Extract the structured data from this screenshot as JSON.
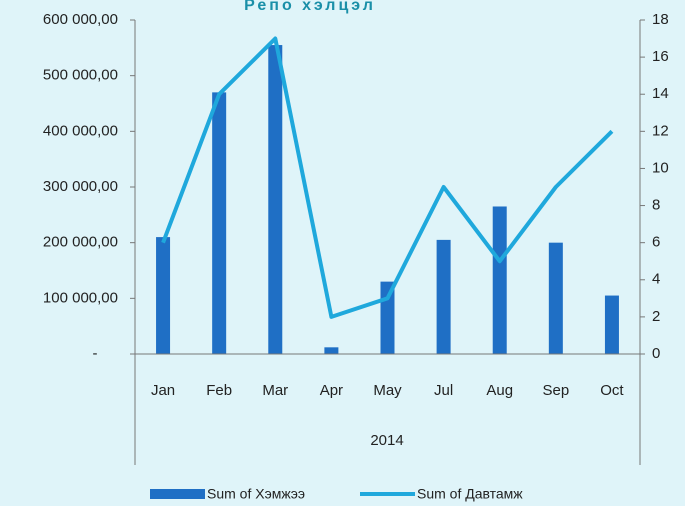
{
  "chart_data": {
    "type": "bar_line",
    "title": "Репо хэлцэл",
    "categories": [
      "Jan",
      "Feb",
      "Mar",
      "Apr",
      "May",
      "Jul",
      "Aug",
      "Sep",
      "Oct"
    ],
    "group_label": "2014",
    "series": [
      {
        "name": "Sum of Хэмжээ",
        "type": "bar",
        "color": "#1f6fc5",
        "axis": "y",
        "values": [
          210000,
          470000,
          555000,
          12000,
          130000,
          205000,
          265000,
          200000,
          105000
        ]
      },
      {
        "name": "Sum of Давтамж",
        "type": "line",
        "color": "#1fa8dc",
        "axis": "y2",
        "values": [
          6,
          14,
          17,
          2,
          3,
          9,
          5,
          9,
          12
        ]
      }
    ],
    "ylim": [
      0,
      600000
    ],
    "yticks": [
      {
        "value": 0,
        "label": "-"
      },
      {
        "value": 100000,
        "label": "100 000,00"
      },
      {
        "value": 200000,
        "label": "200 000,00"
      },
      {
        "value": 300000,
        "label": "300 000,00"
      },
      {
        "value": 400000,
        "label": "400 000,00"
      },
      {
        "value": 500000,
        "label": "500 000,00"
      },
      {
        "value": 600000,
        "label": "600 000,00"
      }
    ],
    "y2lim": [
      0,
      18
    ],
    "y2ticks": [
      0,
      2,
      4,
      6,
      8,
      10,
      12,
      14,
      16,
      18
    ],
    "legend": "bottom"
  }
}
